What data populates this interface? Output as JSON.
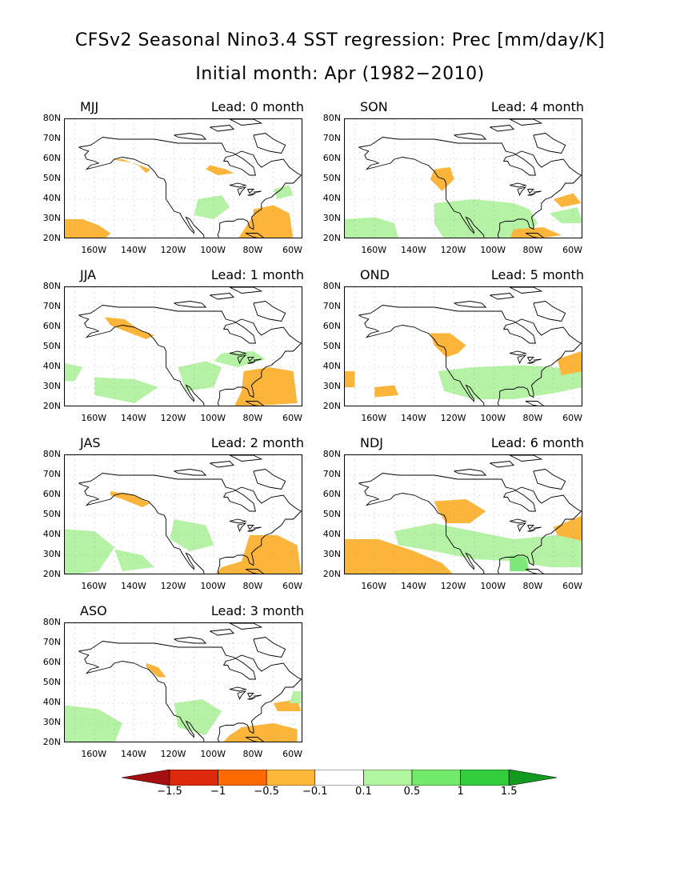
{
  "title_line1": "CFSv2 Seasonal Nino3.4 SST regression: Prec [mm/day/K]",
  "title_line2": "Initial month: Apr (1982−2010)",
  "y_ticks": [
    "80N",
    "70N",
    "60N",
    "50N",
    "40N",
    "30N",
    "20N"
  ],
  "x_ticks": [
    "160W",
    "140W",
    "120W",
    "100W",
    "80W",
    "60W"
  ],
  "panels": [
    {
      "season": "MJJ",
      "lead": "Lead: 0 month"
    },
    {
      "season": "SON",
      "lead": "Lead: 4 month"
    },
    {
      "season": "JJA",
      "lead": "Lead: 1 month"
    },
    {
      "season": "OND",
      "lead": "Lead: 5 month"
    },
    {
      "season": "JAS",
      "lead": "Lead: 2 month"
    },
    {
      "season": "NDJ",
      "lead": "Lead: 6 month"
    },
    {
      "season": "ASO",
      "lead": "Lead: 3 month"
    }
  ],
  "colorbar": {
    "labels": [
      "−1.5",
      "−1",
      "−0.5",
      "−0.1",
      "0.1",
      "0.5",
      "1",
      "1.5"
    ],
    "colors": [
      "#a50f0f",
      "#dd2a0c",
      "#ff6a00",
      "#ffb73a",
      "#ffffff",
      "#b0f5a0",
      "#72ea6a",
      "#33cc3b",
      "#139a1f"
    ]
  },
  "colors": {
    "neg_weak": "#fbb53a",
    "pos_weak": "#b6f2a6",
    "pos_mid": "#7ee87a",
    "grid": "#999999"
  }
}
